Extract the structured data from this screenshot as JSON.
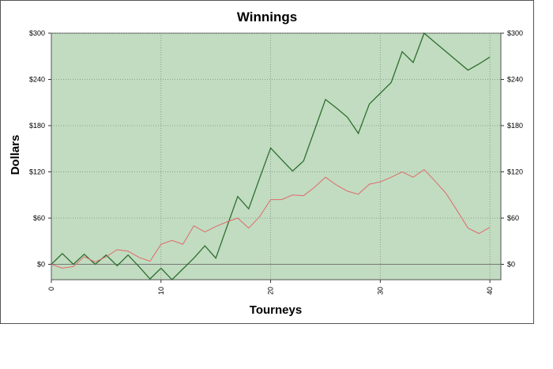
{
  "chart_data": {
    "type": "line",
    "title": "Winnings",
    "xlabel": "Tourneys",
    "ylabel": "Dollars",
    "xlim": [
      0,
      41
    ],
    "ylim": [
      -20,
      300
    ],
    "x_ticks": [
      0,
      10,
      20,
      30,
      40
    ],
    "y_ticks": [
      0,
      60,
      120,
      180,
      240,
      300
    ],
    "y_tick_labels": [
      "$0",
      "$60",
      "$120",
      "$180",
      "$240",
      "$300"
    ],
    "grid": true,
    "legend": "none",
    "colors": {
      "plot_bg": "#c1dcc1",
      "zero_line": "#777777"
    },
    "series": [
      {
        "color": "#2e6e2e",
        "x": [
          0,
          1,
          2,
          3,
          4,
          5,
          6,
          7,
          8,
          9,
          10,
          11,
          12,
          13,
          14,
          15,
          16,
          17,
          18,
          19,
          20,
          21,
          22,
          23,
          24,
          25,
          26,
          27,
          28,
          29,
          30,
          31,
          32,
          33,
          34,
          35,
          36,
          37,
          38,
          39,
          40
        ],
        "values": [
          0,
          14,
          0,
          13,
          0,
          12,
          -2,
          12,
          -3,
          -19,
          -5,
          -20,
          -6,
          8,
          24,
          8,
          48,
          88,
          72,
          112,
          151,
          136,
          121,
          134,
          174,
          214,
          203,
          191,
          170,
          208,
          222,
          236,
          276,
          262,
          300,
          288,
          276,
          264,
          252,
          260,
          269
        ]
      },
      {
        "color": "#e06a6a",
        "x": [
          0,
          1,
          2,
          3,
          4,
          5,
          6,
          7,
          8,
          9,
          10,
          11,
          12,
          13,
          14,
          15,
          16,
          17,
          18,
          19,
          20,
          21,
          22,
          23,
          24,
          25,
          26,
          27,
          28,
          29,
          30,
          31,
          32,
          33,
          34,
          35,
          36,
          37,
          38,
          39,
          40
        ],
        "values": [
          0,
          -5,
          -3,
          10,
          3,
          10,
          19,
          17,
          9,
          4,
          26,
          31,
          26,
          50,
          42,
          49,
          55,
          60,
          47,
          62,
          84,
          84,
          90,
          89,
          100,
          113,
          103,
          95,
          91,
          104,
          107,
          113,
          120,
          113,
          123,
          108,
          92,
          70,
          47,
          40,
          48
        ]
      }
    ]
  }
}
